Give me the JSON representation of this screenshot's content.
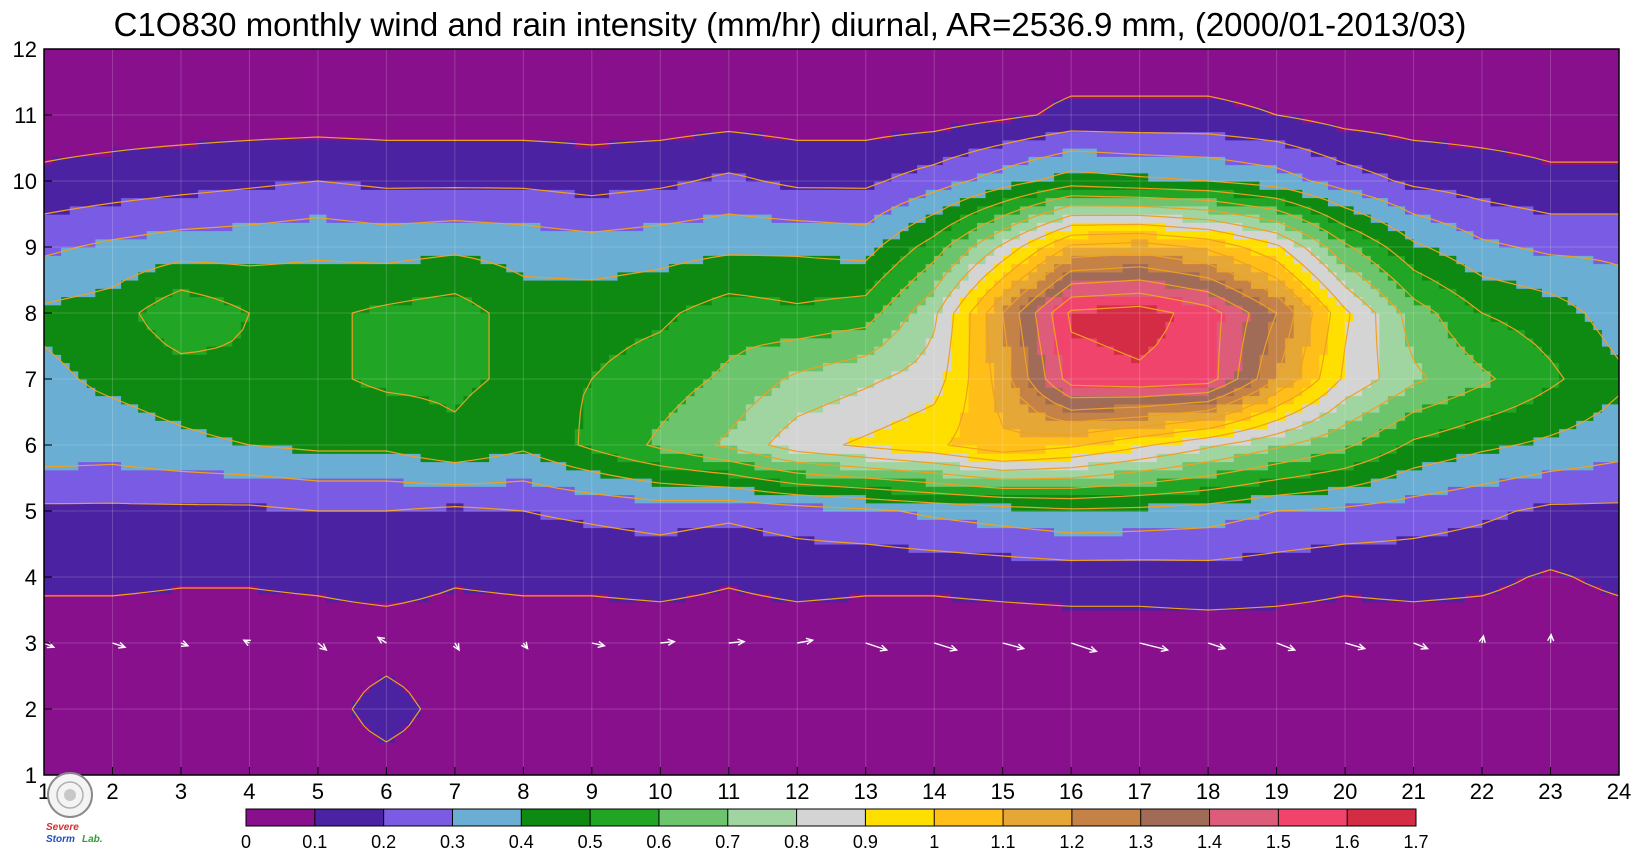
{
  "chart_data": {
    "type": "heatmap",
    "title": "C1O830 monthly wind and rain intensity (mm/hr) diurnal, AR=2536.9 mm, (2000/01-2013/03)",
    "xlabel": "",
    "ylabel": "",
    "xlim": [
      1,
      24
    ],
    "ylim": [
      1,
      12
    ],
    "x_ticks": [
      1,
      2,
      3,
      4,
      5,
      6,
      7,
      8,
      9,
      10,
      11,
      12,
      13,
      14,
      15,
      16,
      17,
      18,
      19,
      20,
      21,
      22,
      23,
      24
    ],
    "y_ticks": [
      1,
      2,
      3,
      4,
      5,
      6,
      7,
      8,
      9,
      10,
      11,
      12
    ],
    "grid": true,
    "colorbar": {
      "levels": [
        0,
        0.1,
        0.2,
        0.3,
        0.4,
        0.5,
        0.6,
        0.7,
        0.8,
        0.9,
        1,
        1.1,
        1.2,
        1.3,
        1.4,
        1.5,
        1.6,
        1.7
      ],
      "labels": [
        "0",
        "0.1",
        "0.2",
        "0.3",
        "0.4",
        "0.5",
        "0.6",
        "0.7",
        "0.8",
        "0.9",
        "1",
        "1.1",
        "1.2",
        "1.3",
        "1.4",
        "1.5",
        "1.6",
        "1.7"
      ],
      "colors": [
        "#88108c",
        "#4a22a2",
        "#7a5ce4",
        "#6aaed4",
        "#0e8a12",
        "#21a525",
        "#6cc46c",
        "#a0d4a0",
        "#d4d4d4",
        "#ffdf00",
        "#ffbf18",
        "#e5a836",
        "#c48246",
        "#a06c58",
        "#dd5c7a",
        "#f0446c",
        "#d42c44"
      ]
    },
    "contour_line_color": "#f0a020",
    "rain_intensity": [
      [
        0.05,
        0.05,
        0.05,
        0.05,
        0.05,
        0.05,
        0.05,
        0.05,
        0.05,
        0.05,
        0.05,
        0.05,
        0.05,
        0.05,
        0.05,
        0.05,
        0.05,
        0.05,
        0.05,
        0.05,
        0.05,
        0.05,
        0.05,
        0.05
      ],
      [
        0.05,
        0.05,
        0.05,
        0.05,
        0.05,
        0.15,
        0.05,
        0.05,
        0.05,
        0.05,
        0.05,
        0.05,
        0.05,
        0.05,
        0.05,
        0.05,
        0.05,
        0.05,
        0.05,
        0.05,
        0.05,
        0.05,
        0.05,
        0.05
      ],
      [
        0.05,
        0.05,
        0.05,
        0.05,
        0.05,
        0.05,
        0.05,
        0.05,
        0.05,
        0.05,
        0.05,
        0.05,
        0.05,
        0.05,
        0.05,
        0.05,
        0.05,
        0.05,
        0.05,
        0.05,
        0.05,
        0.05,
        0.05,
        0.05
      ],
      [
        0.12,
        0.12,
        0.11,
        0.11,
        0.12,
        0.14,
        0.11,
        0.12,
        0.12,
        0.13,
        0.11,
        0.13,
        0.12,
        0.12,
        0.13,
        0.14,
        0.14,
        0.15,
        0.14,
        0.12,
        0.13,
        0.12,
        0.09,
        0.12
      ],
      [
        0.18,
        0.18,
        0.18,
        0.18,
        0.2,
        0.2,
        0.18,
        0.2,
        0.22,
        0.24,
        0.22,
        0.25,
        0.28,
        0.32,
        0.35,
        0.38,
        0.37,
        0.35,
        0.3,
        0.28,
        0.25,
        0.22,
        0.18,
        0.18
      ],
      [
        0.36,
        0.35,
        0.38,
        0.4,
        0.42,
        0.42,
        0.48,
        0.42,
        0.52,
        0.62,
        0.72,
        0.86,
        0.92,
        0.98,
        1.08,
        1.02,
        0.92,
        0.82,
        0.72,
        0.62,
        0.48,
        0.42,
        0.38,
        0.34
      ],
      [
        0.38,
        0.42,
        0.45,
        0.48,
        0.48,
        0.52,
        0.52,
        0.48,
        0.5,
        0.55,
        0.62,
        0.72,
        0.78,
        0.85,
        1.15,
        1.55,
        1.58,
        1.55,
        1.2,
        0.88,
        0.72,
        0.62,
        0.52,
        0.42
      ],
      [
        0.42,
        0.45,
        0.58,
        0.5,
        0.48,
        0.52,
        0.55,
        0.45,
        0.46,
        0.48,
        0.55,
        0.52,
        0.55,
        0.78,
        1.2,
        1.62,
        1.65,
        1.55,
        1.3,
        0.92,
        0.65,
        0.5,
        0.45,
        0.35
      ],
      [
        0.28,
        0.32,
        0.35,
        0.36,
        0.38,
        0.36,
        0.38,
        0.36,
        0.34,
        0.36,
        0.38,
        0.38,
        0.36,
        0.55,
        0.82,
        1.12,
        1.15,
        1.08,
        0.92,
        0.62,
        0.42,
        0.32,
        0.28,
        0.28
      ],
      [
        0.12,
        0.14,
        0.16,
        0.18,
        0.2,
        0.18,
        0.18,
        0.18,
        0.16,
        0.18,
        0.22,
        0.18,
        0.18,
        0.25,
        0.35,
        0.45,
        0.42,
        0.4,
        0.35,
        0.25,
        0.18,
        0.15,
        0.12,
        0.12
      ],
      [
        0.05,
        0.05,
        0.05,
        0.05,
        0.05,
        0.05,
        0.05,
        0.05,
        0.05,
        0.05,
        0.06,
        0.05,
        0.05,
        0.05,
        0.08,
        0.12,
        0.12,
        0.12,
        0.1,
        0.06,
        0.05,
        0.05,
        0.05,
        0.05
      ],
      [
        0.05,
        0.05,
        0.05,
        0.05,
        0.05,
        0.05,
        0.05,
        0.05,
        0.05,
        0.05,
        0.05,
        0.05,
        0.05,
        0.05,
        0.05,
        0.05,
        0.05,
        0.05,
        0.05,
        0.05,
        0.05,
        0.05,
        0.05,
        0.05
      ]
    ],
    "wind_vectors": {
      "row": 3,
      "color": "#ffffff",
      "u": [
        0.35,
        0.45,
        0.25,
        -0.2,
        0.3,
        -0.3,
        0.15,
        0.15,
        0.45,
        0.5,
        0.55,
        0.55,
        0.75,
        0.8,
        0.75,
        0.9,
        1.0,
        0.6,
        0.65,
        0.7,
        0.5,
        0.05,
        0.02,
        0.3
      ],
      "v": [
        -0.15,
        -0.15,
        -0.1,
        0.1,
        -0.25,
        0.2,
        -0.25,
        -0.2,
        -0.1,
        0.05,
        0.05,
        0.1,
        -0.25,
        -0.25,
        -0.2,
        -0.3,
        -0.25,
        -0.2,
        -0.25,
        -0.2,
        -0.2,
        0.25,
        0.3,
        0.15
      ]
    }
  },
  "logo": {
    "lab_text_1": "Severe",
    "lab_text_2": "Storm",
    "lab_text_3": "Lab."
  }
}
